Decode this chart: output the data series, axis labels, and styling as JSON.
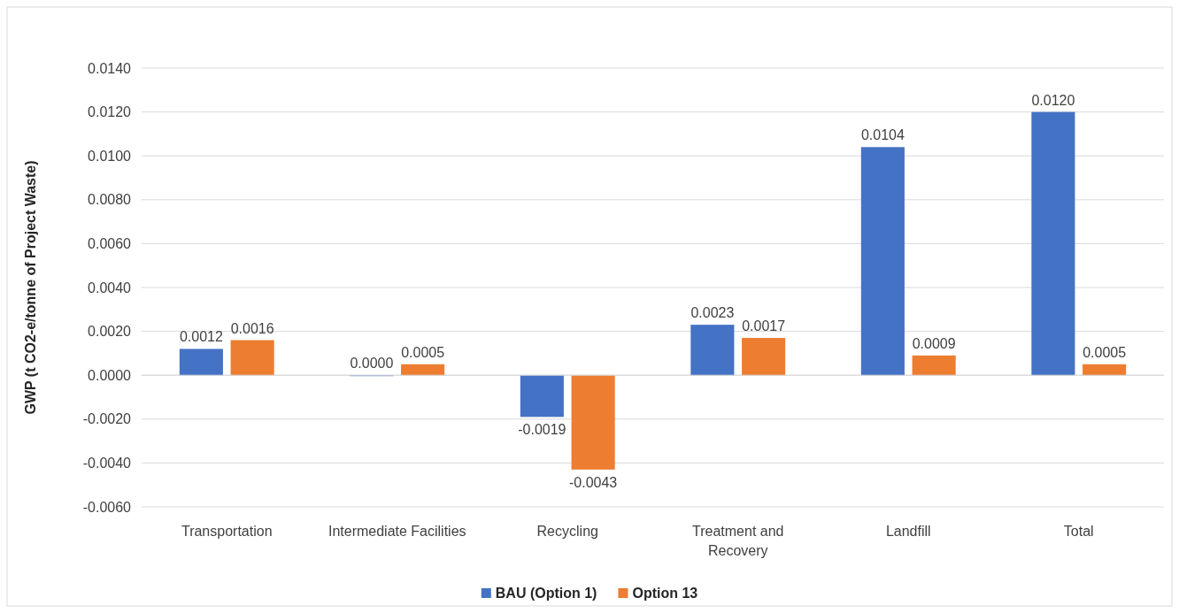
{
  "chart_data": {
    "type": "bar",
    "ylabel": "GWP (t CO2-e/tonne of Project Waste)",
    "categories": [
      "Transportation",
      "Intermediate Facilities",
      "Recycling",
      "Treatment and Recovery",
      "Landfill",
      "Total"
    ],
    "series": [
      {
        "name": "BAU (Option 1)",
        "color": "#4472c4",
        "values": [
          0.0012,
          0,
          -0.0019,
          0.0023,
          0.0104,
          0.012
        ],
        "value_labels": [
          "0.0012",
          "0.0000",
          "-0.0019",
          "0.0023",
          "0.0104",
          "0.0120"
        ]
      },
      {
        "name": "Option 13",
        "color": "#ed7d31",
        "values": [
          0.0016,
          0.0005,
          -0.0043,
          0.0017,
          0.0009,
          0.0005
        ],
        "value_labels": [
          "0.0016",
          "0.0005",
          "-0.0043",
          "0.0017",
          "0.0009",
          "0.0005"
        ]
      }
    ],
    "ylim": [
      -0.006,
      0.014
    ],
    "yticks": [
      {
        "value": -0.006,
        "label": "-0.0060"
      },
      {
        "value": -0.004,
        "label": "-0.0040"
      },
      {
        "value": -0.002,
        "label": "-0.0020"
      },
      {
        "value": 0,
        "label": "0.0000"
      },
      {
        "value": 0.002,
        "label": "0.0020"
      },
      {
        "value": 0.004,
        "label": "0.0040"
      },
      {
        "value": 0.006,
        "label": "0.0060"
      },
      {
        "value": 0.008,
        "label": "0.0080"
      },
      {
        "value": 0.01,
        "label": "0.0100"
      },
      {
        "value": 0.012,
        "label": "0.0120"
      },
      {
        "value": 0.014,
        "label": "0.0140"
      }
    ],
    "grid": "y",
    "legend": "bottom"
  }
}
